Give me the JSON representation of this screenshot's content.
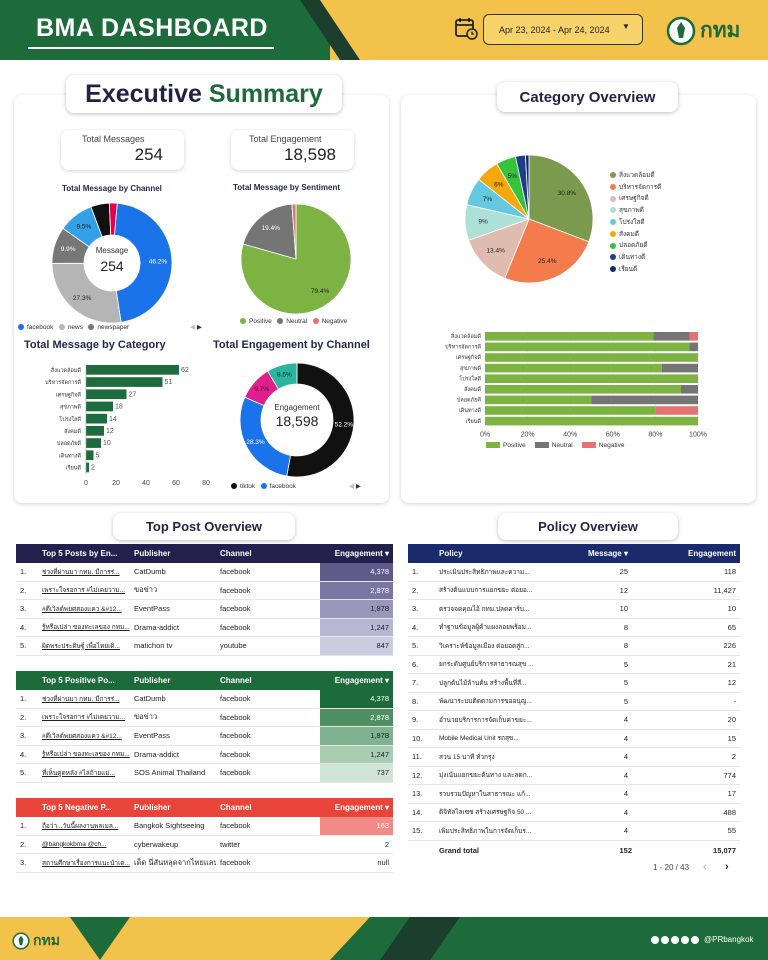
{
  "header": {
    "title": "BMA DASHBOARD",
    "date_range": "Apr 23, 2024 - Apr 24, 2024",
    "logo_text": "กทม"
  },
  "executive": {
    "title_a": "Executive",
    "title_b": "Summary",
    "total_messages_label": "Total Messages",
    "total_messages": "254",
    "total_engagement_label": "Total Engagement",
    "total_engagement": "18,598",
    "by_channel": {
      "title": "Total Message by Channel",
      "center_label": "Message",
      "center_value": "254",
      "legend": [
        "facebook",
        "news",
        "newspaper"
      ]
    },
    "by_sentiment": {
      "title": "Total Message by Sentiment",
      "legend": [
        "Positive",
        "Neutral",
        "Negative"
      ]
    },
    "by_category": {
      "title": "Total Message by Category"
    },
    "engagement_by_channel": {
      "title": "Total Engagement by Channel",
      "center_label": "Engagement",
      "center_value": "18,598",
      "legend": [
        "tiktok",
        "facebook"
      ]
    }
  },
  "category_overview": {
    "title": "Category Overview",
    "legend": [
      "สิ่งแวดล้อมดี",
      "บริหารจัดการดี",
      "เศรษฐกิจดี",
      "สุขภาพดี",
      "โปร่งใสดี",
      "สังคมดี",
      "ปลอดภัยดี",
      "เดินทางดี",
      "เรียนดี"
    ],
    "stack_legend": [
      "Positive",
      "Neutral",
      "Negative"
    ],
    "axis_ticks": [
      "0%",
      "20%",
      "40%",
      "60%",
      "80%",
      "100%"
    ]
  },
  "top_post": {
    "title": "Top Post Overview",
    "tables": [
      {
        "headers": [
          "Top 5 Posts by En...",
          "Publisher",
          "Channel",
          "Engagement ▾"
        ],
        "rows": [
          [
            "1.",
            "ช่วงที่ผ่านมา กทม. มีการร่...",
            "CatDumb",
            "facebook",
            "4,378"
          ],
          [
            "2.",
            "เพราะใจรอการ #ไม่เคยวาม...",
            "ขอข่าว",
            "facebook",
            "2,878"
          ],
          [
            "3.",
            "#ดีเวิลด์พยศสองแคว &#12...",
            "EventPass",
            "facebook",
            "1,878"
          ],
          [
            "4.",
            "รู้หรือเปล่า ของทะเลของ กทม...",
            "Drama-addict",
            "facebook",
            "1,247"
          ],
          [
            "5.",
            "ผิดพระประดิษฐ์ เพื่อไทยเดิ...",
            "matichon tv",
            "youtube",
            "847"
          ]
        ]
      },
      {
        "headers": [
          "Top 5 Positive Po...",
          "Publisher",
          "Channel",
          "Engagement ▾"
        ],
        "rows": [
          [
            "1.",
            "ช่วงที่ผ่านมา กทม. มีการร่...",
            "CatDumb",
            "facebook",
            "4,378"
          ],
          [
            "2.",
            "เพราะใจรอการ #ไม่เคยวาม...",
            "ขอข่าว",
            "facebook",
            "2,878"
          ],
          [
            "3.",
            "#ดีเวิลด์พยศสองแคว &#12...",
            "EventPass",
            "facebook",
            "1,878"
          ],
          [
            "4.",
            "รู้หรือเปล่า ของทะเลของ กทม...",
            "Drama-addict",
            "facebook",
            "1,247"
          ],
          [
            "5.",
            "ที่เห็นดูดหลัง #ไล่ถ้ายแม่...",
            "SOS Animal Thailand",
            "facebook",
            "737"
          ]
        ]
      },
      {
        "headers": [
          "Top 5 Negative P...",
          "Publisher",
          "Channel",
          "Engagement ▾"
        ],
        "rows": [
          [
            "1.",
            "ถือว่า...วันนี้ผลงานพลเมล...",
            "Bangkok Sightseeing",
            "facebook",
            "163"
          ],
          [
            "2.",
            "@bangkokbma @ch...",
            "cyberwakeup",
            "twitter",
            "2"
          ],
          [
            "3.",
            "สถานศึกษาเรื่องการแนะนำเด...",
            "เด็ด นี่สันหลุดจากไทยแลนด์",
            "facebook",
            "null"
          ]
        ]
      }
    ]
  },
  "policy": {
    "title": "Policy Overview",
    "headers": [
      "Policy",
      "Message ▾",
      "Engagement"
    ],
    "rows": [
      [
        "1.",
        "ประเมินประสิทธิภาพและความ...",
        "25",
        "118"
      ],
      [
        "2.",
        "สร้างต้นแบบการแยกขยะ ต่อยอ...",
        "12",
        "11,427"
      ],
      [
        "3.",
        "ตรวจจดคุณไอ้ กทม.ปลดคาร์บ...",
        "10",
        "10"
      ],
      [
        "4.",
        "ทำฐานข้อมูลผู้ค้าแผงลอยพร้อม...",
        "8",
        "65"
      ],
      [
        "5.",
        "วิเคราะห์ข้อมูลเมือง ต่อยอดสู่ก...",
        "8",
        "226"
      ],
      [
        "6.",
        "ยกระดับศูนย์บริการสาธารณสุข ...",
        "5",
        "21"
      ],
      [
        "7.",
        "ปลูกต้นไม้ล้านต้น สร้างพื้นที่สี...",
        "5",
        "12"
      ],
      [
        "8.",
        "พัฒนาระบบติดตามการขออนุญ...",
        "5",
        "-"
      ],
      [
        "9.",
        "อำนวยบริการการจัดเก็บค่าขยะ...",
        "4",
        "20"
      ],
      [
        "10.",
        "Mobile Medical Unit รถสุข...",
        "4",
        "15"
      ],
      [
        "11.",
        "สวน 15 นาที ทั่วกรุง",
        "4",
        "2"
      ],
      [
        "12.",
        "มุ่งเน้นแยกขยะต้นทาง และลดก...",
        "4",
        "774"
      ],
      [
        "13.",
        "รวบรวมปัญหาในสาธารณะ แก้...",
        "4",
        "17"
      ],
      [
        "14.",
        "ดิจิทัลไลเซซ สร้างเศรษฐกิจ 50 ...",
        "4",
        "488"
      ],
      [
        "15.",
        "เพิ่มประสิทธิภาพในการจัดเก็บร...",
        "4",
        "55"
      ]
    ],
    "grand_total_label": "Grand total",
    "grand_total_message": "152",
    "grand_total_engagement": "15,077",
    "pagination": "1 - 20 / 43"
  },
  "footer": {
    "logo_text": "กทม",
    "handle": "@PRbangkok"
  },
  "chart_data": [
    {
      "type": "pie",
      "title": "Total Message by Channel",
      "labels": [
        "facebook",
        "news",
        "newspaper",
        "other-1",
        "other-2",
        "other-3"
      ],
      "values": [
        46.2,
        27.3,
        9.9,
        9.5,
        5.0,
        2.1
      ],
      "value_labels": [
        "46.2%",
        "27.3%",
        "9.9%",
        "9.5%",
        "",
        ""
      ],
      "colors": [
        "#1a73e8",
        "#b5b5b5",
        "#777777",
        "#34a0e8",
        "#111111",
        "#e5004f"
      ]
    },
    {
      "type": "pie",
      "title": "Total Message by Sentiment",
      "labels": [
        "Positive",
        "Neutral",
        "Negative"
      ],
      "values": [
        79.4,
        19.4,
        1.2
      ],
      "value_labels": [
        "79.4%",
        "19.4%",
        ""
      ],
      "colors": [
        "#7cb342",
        "#757575",
        "#e57373"
      ]
    },
    {
      "type": "bar",
      "title": "Total Message by Category",
      "categories": [
        "สิ่งแวดล้อมดี",
        "บริหารจัดการดี",
        "เศรษฐกิจดี",
        "สุขภาพดี",
        "โปร่งใสดี",
        "สังคมดี",
        "ปลอดภัยดี",
        "เดินทางดี",
        "เรียนดี"
      ],
      "values": [
        62,
        51,
        27,
        18,
        14,
        12,
        10,
        5,
        2
      ],
      "xticks": [
        "0",
        "20",
        "40",
        "60",
        "80"
      ],
      "xlim": [
        0,
        80
      ],
      "color": "#1e6b3d"
    },
    {
      "type": "pie",
      "title": "Total Engagement by Channel",
      "labels": [
        "tiktok",
        "facebook",
        "other-1",
        "other-2"
      ],
      "values": [
        52.2,
        28.3,
        9.7,
        8.5
      ],
      "value_labels": [
        "52.2%",
        "28.3%",
        "9.7%",
        "8.5%"
      ],
      "colors": [
        "#111111",
        "#1a73e8",
        "#e01e8c",
        "#2bb5a0"
      ]
    },
    {
      "type": "pie",
      "title": "Category Overview",
      "labels": [
        "สิ่งแวดล้อมดี",
        "บริหารจัดการดี",
        "เศรษฐกิจดี",
        "สุขภาพดี",
        "โปร่งใสดี",
        "สังคมดี",
        "ปลอดภัยดี",
        "เดินทางดี",
        "เรียนดี"
      ],
      "values": [
        30.8,
        25.4,
        13.4,
        9,
        7,
        6,
        5,
        2.5,
        0.9
      ],
      "value_labels": [
        "30.8%",
        "25.4%",
        "13.4%",
        "9%",
        "7%",
        "6%",
        "5%",
        "",
        ""
      ],
      "colors": [
        "#7c9a4e",
        "#f47c4c",
        "#e0bcb0",
        "#aee0d8",
        "#62c9e0",
        "#f5a80c",
        "#37c23c",
        "#1e3c88",
        "#0d2a70"
      ]
    },
    {
      "type": "bar",
      "stacked": true,
      "orientation": "horizontal",
      "title": "Category Overview sentiment",
      "categories": [
        "สิ่งแวดล้อมดี",
        "บริหารจัดการดี",
        "เศรษฐกิจดี",
        "สุขภาพดี",
        "โปร่งใสดี",
        "สังคมดี",
        "ปลอดภัยดี",
        "เดินทางดี",
        "เรียนดี"
      ],
      "series": [
        {
          "name": "Positive",
          "values": [
            79,
            96,
            100,
            83,
            100,
            92,
            50,
            80,
            100
          ],
          "color": "#7cb342"
        },
        {
          "name": "Neutral",
          "values": [
            17,
            4,
            0,
            17,
            0,
            8,
            50,
            0,
            0
          ],
          "color": "#757575"
        },
        {
          "name": "Negative",
          "values": [
            4,
            0,
            0,
            0,
            0,
            0,
            0,
            20,
            0
          ],
          "color": "#e57373"
        }
      ],
      "xticks": [
        "0%",
        "20%",
        "40%",
        "60%",
        "80%",
        "100%"
      ],
      "xlim": [
        0,
        100
      ]
    }
  ]
}
